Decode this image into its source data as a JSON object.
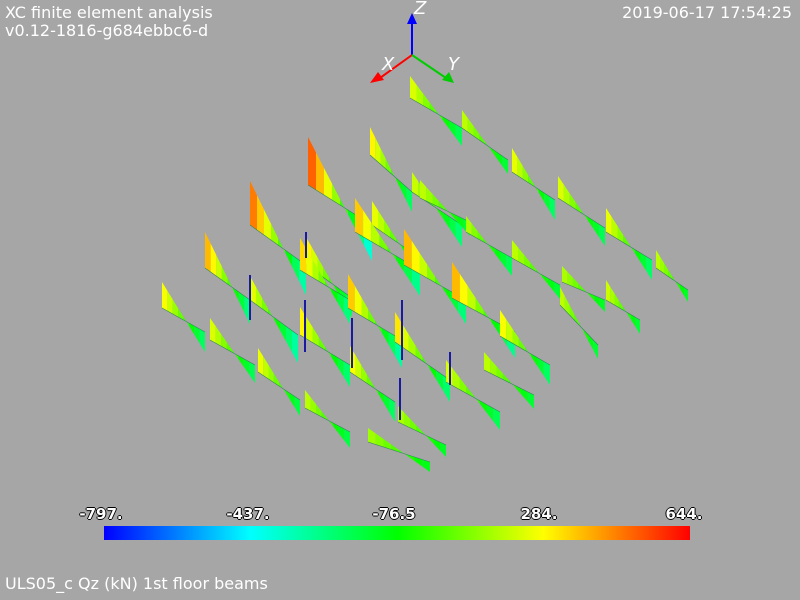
{
  "header": {
    "program": "XC finite element analysis",
    "version": "v0.12-1816-g684ebbc6-d",
    "timestamp": "2019-06-17 17:54:25"
  },
  "axes": {
    "z_label": "Z",
    "x_label": "X",
    "y_label": "Y",
    "x_color": "#ff0000",
    "y_color": "#00cc00",
    "z_color": "#0000ff"
  },
  "colorbar": {
    "min": -797,
    "max": 644,
    "tick_labels": [
      "-797.",
      "-437.",
      "-76.5",
      "284.",
      "644."
    ],
    "colors": [
      "#0000ff",
      "#00ffff",
      "#00ff00",
      "#ffff00",
      "#ff0000"
    ]
  },
  "footer": {
    "caption": "ULS05_c Qz (kN) 1st floor beams"
  }
}
